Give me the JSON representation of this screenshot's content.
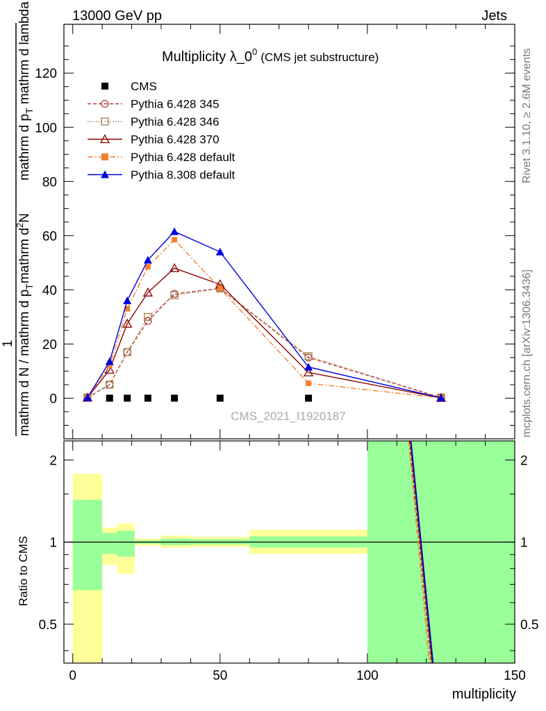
{
  "header": {
    "left": "13000 GeV pp",
    "right": "Jets"
  },
  "title": {
    "main": "Multiplicity λ_0",
    "sup": "0",
    "sub": "(CMS jet substructure)"
  },
  "side_labels": {
    "rivet": "Rivet 3.1.10, ≥ 2.6M events",
    "mcplots": "mcplots.cern.ch [arXiv:1306.3436]"
  },
  "analysis_tag": "CMS_2021_I1920187",
  "main_ylabel": {
    "numerator_1": "1",
    "denominator_1": "mathrm d N / mathrm d p",
    "denominator_sub": "T",
    "numerator_2": "mathrm d",
    "numerator_sup": "2",
    "numerator_2b": "N",
    "denominator_2": "mathrm d p",
    "denominator_2_sub": "T",
    "denominator_2b": " mathrm d lambda"
  },
  "ratio_ylabel": "Ratio to CMS",
  "xlabel": "multiplicity",
  "colors": {
    "cms": "#000000",
    "p345": "#b03a3a",
    "p346": "#a0804a",
    "p370": "#8b0000",
    "p6def": "#f28030",
    "p8def": "#0000dd",
    "band_inner": "#99ff99",
    "band_outer": "#ffff99"
  },
  "chart_data": [
    {
      "type": "line",
      "title": "Multiplicity λ_0^0 (CMS jet substructure)",
      "xlabel": "multiplicity",
      "ylabel": "1 / (mathrm d N / mathrm d p_T) mathrm d^2N / (mathrm d p_T mathrm d lambda)",
      "xlim": [
        -3,
        150
      ],
      "ylim": [
        -15,
        138
      ],
      "yticks": [
        0,
        20,
        40,
        60,
        80,
        100,
        120
      ],
      "grid": false,
      "legend_position": "top-left",
      "x": [
        5,
        12.5,
        18.5,
        25.5,
        34.5,
        50,
        80,
        125
      ],
      "series": [
        {
          "name": "CMS",
          "key": "cms",
          "style": "marker",
          "marker": "square",
          "values": [
            0,
            0,
            0,
            0,
            0,
            0,
            0,
            0
          ]
        },
        {
          "name": "Pythia 6.428 345",
          "key": "p345",
          "style": "dashed",
          "marker": "circle-open",
          "values": [
            0.2,
            5,
            17,
            28.5,
            38.5,
            40.5,
            15,
            0.2
          ]
        },
        {
          "name": "Pythia 6.428 346",
          "key": "p346",
          "style": "dotted",
          "marker": "square-open",
          "values": [
            0.2,
            5,
            17,
            30,
            38,
            40.5,
            15.5,
            0.2
          ]
        },
        {
          "name": "Pythia 6.428 370",
          "key": "p370",
          "style": "solid",
          "marker": "triangle-open",
          "values": [
            0.2,
            10.5,
            27.5,
            39,
            48,
            42,
            9.5,
            0.1
          ]
        },
        {
          "name": "Pythia 6.428 default",
          "key": "p6def",
          "style": "dashdot",
          "marker": "square",
          "values": [
            0.2,
            12,
            33,
            48.5,
            58.5,
            40.5,
            5.5,
            0.1
          ]
        },
        {
          "name": "Pythia 8.308 default",
          "key": "p8def",
          "style": "solid",
          "marker": "triangle",
          "values": [
            0.2,
            13.5,
            36,
            51,
            61.5,
            54,
            11.5,
            0.1
          ]
        }
      ]
    },
    {
      "type": "line",
      "title": "",
      "xlabel": "multiplicity",
      "ylabel": "Ratio to CMS",
      "scale": "log",
      "xlim": [
        -3,
        150
      ],
      "ylim": [
        0.36,
        2.35
      ],
      "yticks": [
        0.5,
        1,
        2
      ],
      "xticks": [
        0,
        50,
        100,
        150
      ],
      "reference_line": 1,
      "bands": [
        {
          "x0": 0,
          "x1": 10,
          "inner": [
            0.667,
            1.43
          ],
          "outer": [
            0.36,
            1.78
          ]
        },
        {
          "x0": 10,
          "x1": 15,
          "inner": [
            0.905,
            1.08
          ],
          "outer": [
            0.825,
            1.13
          ]
        },
        {
          "x0": 15,
          "x1": 21,
          "inner": [
            0.885,
            1.1
          ],
          "outer": [
            0.765,
            1.17
          ]
        },
        {
          "x0": 21,
          "x1": 30,
          "inner": [
            0.985,
            1.015
          ],
          "outer": [
            0.97,
            1.03
          ]
        },
        {
          "x0": 30,
          "x1": 40,
          "inner": [
            0.975,
            1.03
          ],
          "outer": [
            0.955,
            1.055
          ]
        },
        {
          "x0": 40,
          "x1": 60,
          "inner": [
            0.98,
            1.025
          ],
          "outer": [
            0.96,
            1.045
          ]
        },
        {
          "x0": 60,
          "x1": 100,
          "inner": [
            0.955,
            1.05
          ],
          "outer": [
            0.905,
            1.11
          ]
        },
        {
          "x0": 100,
          "x1": 150,
          "inner": [
            0.36,
            2.35
          ],
          "outer": [
            0.36,
            2.35
          ]
        }
      ],
      "ratio_lines": [
        {
          "key": "p6def",
          "x": [
            114,
            121
          ],
          "values": [
            2.35,
            0.36
          ]
        },
        {
          "key": "p345",
          "x": [
            114.3,
            121.6
          ],
          "values": [
            2.35,
            0.36
          ]
        },
        {
          "key": "p370",
          "x": [
            114.6,
            122
          ],
          "values": [
            2.35,
            0.36
          ]
        },
        {
          "key": "p8def",
          "x": [
            114.8,
            122.3
          ],
          "values": [
            2.35,
            0.36
          ]
        }
      ]
    }
  ]
}
